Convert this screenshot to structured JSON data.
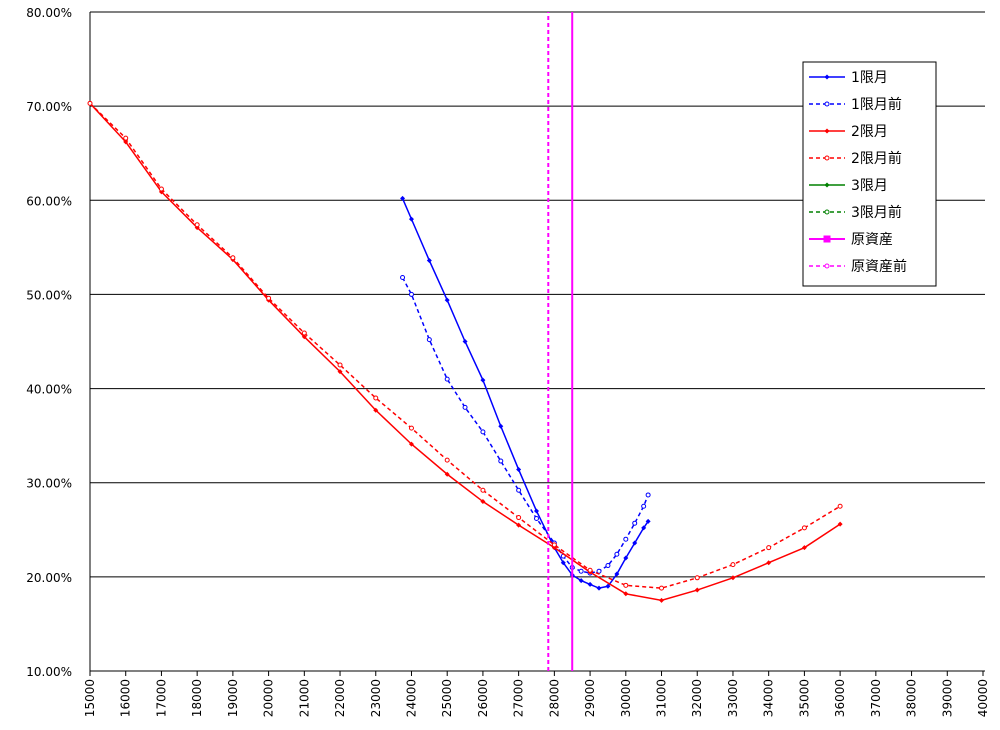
{
  "chart_data": {
    "type": "line",
    "xlim": [
      15000,
      40000
    ],
    "xticks": [
      15000,
      16000,
      17000,
      18000,
      19000,
      20000,
      21000,
      22000,
      23000,
      24000,
      25000,
      26000,
      27000,
      28000,
      29000,
      30000,
      31000,
      32000,
      33000,
      34000,
      35000,
      36000,
      37000,
      38000,
      39000,
      40000
    ],
    "ylim": [
      10,
      80
    ],
    "yticks": [
      {
        "value": 10,
        "label": "10.00%"
      },
      {
        "value": 20,
        "label": "20.00%"
      },
      {
        "value": 30,
        "label": "30.00%"
      },
      {
        "value": 40,
        "label": "40.00%"
      },
      {
        "value": 50,
        "label": "50.00%"
      },
      {
        "value": 60,
        "label": "60.00%"
      },
      {
        "value": 70,
        "label": "70.00%"
      },
      {
        "value": 80,
        "label": "80.00%"
      }
    ],
    "grid": true,
    "legend": "upper-right",
    "series": [
      {
        "name": "1限月",
        "color": "#0000ff",
        "dashed": false,
        "marker": "diamond",
        "x": [
          23750,
          24000,
          24500,
          25000,
          25500,
          26000,
          26500,
          27000,
          27500,
          28000,
          28250,
          28500,
          28750,
          29000,
          29250,
          29500,
          29750,
          30000,
          30250,
          30500,
          30625
        ],
        "values": [
          60.2,
          58.0,
          53.6,
          49.4,
          45.0,
          40.9,
          36.0,
          31.4,
          27.0,
          23.1,
          21.5,
          20.2,
          19.6,
          19.2,
          18.8,
          19.0,
          20.3,
          22.0,
          23.6,
          25.2,
          25.9
        ]
      },
      {
        "name": "1限月前",
        "color": "#0000ff",
        "dashed": true,
        "marker": "circle",
        "x": [
          23750,
          24000,
          24500,
          25000,
          25500,
          26000,
          26500,
          27000,
          27500,
          28000,
          28250,
          28500,
          28750,
          29000,
          29250,
          29500,
          29750,
          30000,
          30250,
          30500,
          30625
        ],
        "values": [
          51.8,
          50.0,
          45.2,
          41.0,
          38.0,
          35.4,
          32.3,
          29.2,
          26.2,
          23.6,
          22.2,
          21.0,
          20.6,
          20.4,
          20.6,
          21.2,
          22.4,
          24.0,
          25.7,
          27.5,
          28.7
        ]
      },
      {
        "name": "2限月",
        "color": "#ff0000",
        "dashed": false,
        "marker": "diamond",
        "x": [
          15000,
          16000,
          17000,
          18000,
          19000,
          20000,
          21000,
          22000,
          23000,
          24000,
          25000,
          26000,
          27000,
          28000,
          29000,
          30000,
          31000,
          32000,
          33000,
          34000,
          35000,
          36000
        ],
        "values": [
          70.3,
          66.2,
          60.9,
          57.1,
          53.7,
          49.4,
          45.5,
          41.8,
          37.7,
          34.1,
          30.9,
          28.0,
          25.5,
          23.1,
          20.5,
          18.2,
          17.5,
          18.6,
          19.9,
          21.5,
          23.1,
          25.6
        ]
      },
      {
        "name": "2限月前",
        "color": "#ff0000",
        "dashed": true,
        "marker": "circle",
        "x": [
          15000,
          16000,
          17000,
          18000,
          19000,
          20000,
          21000,
          22000,
          23000,
          24000,
          25000,
          26000,
          27000,
          28000,
          29000,
          30000,
          31000,
          32000,
          33000,
          34000,
          35000,
          36000
        ],
        "values": [
          70.3,
          66.6,
          61.2,
          57.4,
          53.9,
          49.6,
          45.9,
          42.5,
          39.0,
          35.8,
          32.4,
          29.2,
          26.3,
          23.4,
          20.7,
          19.1,
          18.8,
          19.9,
          21.3,
          23.1,
          25.2,
          27.5
        ]
      },
      {
        "name": "3限月",
        "color": "#008000",
        "dashed": false,
        "marker": "diamond",
        "x": [],
        "values": []
      },
      {
        "name": "3限月前",
        "color": "#008000",
        "dashed": true,
        "marker": "circle",
        "x": [],
        "values": []
      },
      {
        "name": "原資産",
        "color": "#ff00ff",
        "dashed": false,
        "marker": "square",
        "x": [
          28500,
          28500
        ],
        "values": [
          10,
          80
        ]
      },
      {
        "name": "原資産前",
        "color": "#ff00ff",
        "dashed": true,
        "marker": "circle",
        "x": [
          27830,
          27830
        ],
        "values": [
          10,
          80
        ]
      }
    ]
  }
}
